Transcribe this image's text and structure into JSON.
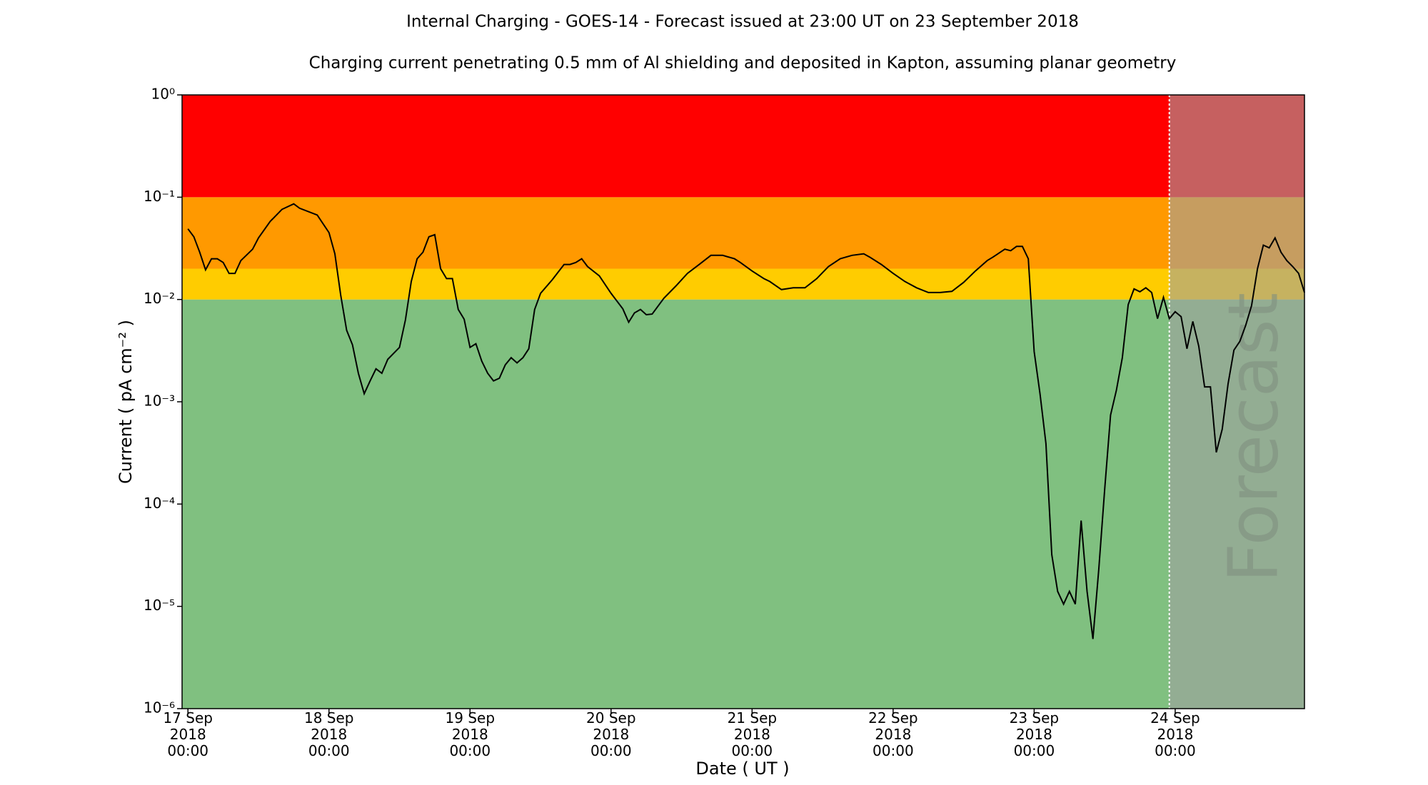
{
  "chart_data": {
    "type": "line",
    "title": "Internal Charging - GOES-14 - Forecast issued at 23:00 UT on 23 September 2018",
    "subtitle": "Charging current penetrating 0.5 mm of Al shielding and deposited in Kapton, assuming planar geometry",
    "x_label": "Date ( UT )",
    "y_label": "Current ( pA cm⁻² )",
    "log_y": true,
    "ylim": [
      1e-06,
      1
    ],
    "yticks": [
      {
        "value": 1e-06,
        "label": "10⁻⁶"
      },
      {
        "value": 1e-05,
        "label": "10⁻⁵"
      },
      {
        "value": 0.0001,
        "label": "10⁻⁴"
      },
      {
        "value": 0.001,
        "label": "10⁻³"
      },
      {
        "value": 0.01,
        "label": "10⁻²"
      },
      {
        "value": 0.1,
        "label": "10⁻¹"
      },
      {
        "value": 1,
        "label": "10⁰"
      }
    ],
    "xlim": [
      "2018-09-16 23:00",
      "2018-09-24 22:00"
    ],
    "xticks": [
      {
        "value": "2018-09-17 00:00",
        "label": "17 Sep\n2018\n00:00"
      },
      {
        "value": "2018-09-18 00:00",
        "label": "18 Sep\n2018\n00:00"
      },
      {
        "value": "2018-09-19 00:00",
        "label": "19 Sep\n2018\n00:00"
      },
      {
        "value": "2018-09-20 00:00",
        "label": "20 Sep\n2018\n00:00"
      },
      {
        "value": "2018-09-21 00:00",
        "label": "21 Sep\n2018\n00:00"
      },
      {
        "value": "2018-09-22 00:00",
        "label": "22 Sep\n2018\n00:00"
      },
      {
        "value": "2018-09-23 00:00",
        "label": "23 Sep\n2018\n00:00"
      },
      {
        "value": "2018-09-24 00:00",
        "label": "24 Sep\n2018\n00:00"
      }
    ],
    "bands": [
      {
        "from": 1e-06,
        "to": 0.01,
        "color": "#80c080"
      },
      {
        "from": 0.01,
        "to": 0.02,
        "color": "#ffcc00"
      },
      {
        "from": 0.02,
        "to": 0.1,
        "color": "#ff9900"
      },
      {
        "from": 0.1,
        "to": 1,
        "color": "#ff0000"
      }
    ],
    "forecast_start": "2018-09-23 23:00",
    "forecast_label": "Forecast",
    "forecast_color": "#a0a0a0",
    "x": [
      "2018-09-17 00:00",
      "2018-09-17 01:00",
      "2018-09-17 02:00",
      "2018-09-17 03:00",
      "2018-09-17 04:00",
      "2018-09-17 05:00",
      "2018-09-17 06:00",
      "2018-09-17 07:00",
      "2018-09-17 08:00",
      "2018-09-17 09:00",
      "2018-09-17 11:00",
      "2018-09-17 12:00",
      "2018-09-17 14:00",
      "2018-09-17 16:00",
      "2018-09-17 18:00",
      "2018-09-17 19:00",
      "2018-09-17 22:00",
      "2018-09-18 00:00",
      "2018-09-18 01:00",
      "2018-09-18 02:00",
      "2018-09-18 03:00",
      "2018-09-18 04:00",
      "2018-09-18 05:00",
      "2018-09-18 06:00",
      "2018-09-18 07:00",
      "2018-09-18 08:00",
      "2018-09-18 09:00",
      "2018-09-18 10:00",
      "2018-09-18 12:00",
      "2018-09-18 13:00",
      "2018-09-18 14:00",
      "2018-09-18 15:00",
      "2018-09-18 16:00",
      "2018-09-18 17:00",
      "2018-09-18 18:00",
      "2018-09-18 19:00",
      "2018-09-18 20:00",
      "2018-09-18 21:00",
      "2018-09-18 22:00",
      "2018-09-18 23:00",
      "2018-09-19 00:00",
      "2018-09-19 01:00",
      "2018-09-19 02:00",
      "2018-09-19 03:00",
      "2018-09-19 04:00",
      "2018-09-19 05:00",
      "2018-09-19 06:00",
      "2018-09-19 07:00",
      "2018-09-19 08:00",
      "2018-09-19 09:00",
      "2018-09-19 10:00",
      "2018-09-19 11:00",
      "2018-09-19 12:00",
      "2018-09-19 14:00",
      "2018-09-19 16:00",
      "2018-09-19 17:00",
      "2018-09-19 18:00",
      "2018-09-19 19:00",
      "2018-09-19 20:00",
      "2018-09-19 22:00",
      "2018-09-20 00:00",
      "2018-09-20 02:00",
      "2018-09-20 03:00",
      "2018-09-20 04:00",
      "2018-09-20 05:00",
      "2018-09-20 06:00",
      "2018-09-20 07:00",
      "2018-09-20 09:00",
      "2018-09-20 11:00",
      "2018-09-20 13:00",
      "2018-09-20 15:00",
      "2018-09-20 17:00",
      "2018-09-20 19:00",
      "2018-09-20 21:00",
      "2018-09-20 22:00",
      "2018-09-21 00:00",
      "2018-09-21 02:00",
      "2018-09-21 03:00",
      "2018-09-21 05:00",
      "2018-09-21 07:00",
      "2018-09-21 09:00",
      "2018-09-21 11:00",
      "2018-09-21 13:00",
      "2018-09-21 15:00",
      "2018-09-21 17:00",
      "2018-09-21 19:00",
      "2018-09-21 20:00",
      "2018-09-21 22:00",
      "2018-09-22 00:00",
      "2018-09-22 02:00",
      "2018-09-22 04:00",
      "2018-09-22 06:00",
      "2018-09-22 08:00",
      "2018-09-22 10:00",
      "2018-09-22 12:00",
      "2018-09-22 14:00",
      "2018-09-22 16:00",
      "2018-09-22 17:00",
      "2018-09-22 19:00",
      "2018-09-22 20:00",
      "2018-09-22 21:00",
      "2018-09-22 22:00",
      "2018-09-22 23:00",
      "2018-09-23 00:00",
      "2018-09-23 01:00",
      "2018-09-23 02:00",
      "2018-09-23 03:00",
      "2018-09-23 04:00",
      "2018-09-23 05:00",
      "2018-09-23 06:00",
      "2018-09-23 07:00",
      "2018-09-23 08:00",
      "2018-09-23 09:00",
      "2018-09-23 10:00",
      "2018-09-23 11:00",
      "2018-09-23 12:00",
      "2018-09-23 13:00",
      "2018-09-23 14:00",
      "2018-09-23 15:00",
      "2018-09-23 16:00",
      "2018-09-23 17:00",
      "2018-09-23 18:00",
      "2018-09-23 19:00",
      "2018-09-23 20:00",
      "2018-09-23 21:00",
      "2018-09-23 22:00",
      "2018-09-23 23:00",
      "2018-09-24 00:00",
      "2018-09-24 01:00",
      "2018-09-24 02:00",
      "2018-09-24 03:00",
      "2018-09-24 04:00",
      "2018-09-24 05:00",
      "2018-09-24 06:00",
      "2018-09-24 07:00",
      "2018-09-24 08:00",
      "2018-09-24 09:00",
      "2018-09-24 10:00",
      "2018-09-24 11:00",
      "2018-09-24 12:00",
      "2018-09-24 13:00",
      "2018-09-24 14:00",
      "2018-09-24 15:00",
      "2018-09-24 16:00",
      "2018-09-24 17:00",
      "2018-09-24 18:00",
      "2018-09-24 19:00",
      "2018-09-24 20:00",
      "2018-09-24 21:00",
      "2018-09-24 22:00"
    ],
    "series": [
      {
        "name": "Current",
        "color": "#000000",
        "values": [
          0.049,
          0.041,
          0.029,
          0.0195,
          0.025,
          0.025,
          0.023,
          0.018,
          0.018,
          0.024,
          0.031,
          0.04,
          0.058,
          0.076,
          0.086,
          0.078,
          0.067,
          0.045,
          0.028,
          0.011,
          0.005,
          0.0036,
          0.0019,
          0.0012,
          0.0016,
          0.0021,
          0.0019,
          0.0026,
          0.0034,
          0.0063,
          0.015,
          0.025,
          0.029,
          0.041,
          0.043,
          0.02,
          0.016,
          0.016,
          0.008,
          0.0064,
          0.0034,
          0.0037,
          0.0025,
          0.0019,
          0.0016,
          0.0017,
          0.0023,
          0.0027,
          0.0024,
          0.0027,
          0.0033,
          0.008,
          0.0115,
          0.0156,
          0.022,
          0.022,
          0.023,
          0.025,
          0.021,
          0.017,
          0.0115,
          0.0081,
          0.006,
          0.0074,
          0.008,
          0.0071,
          0.0072,
          0.0103,
          0.0135,
          0.018,
          0.022,
          0.027,
          0.027,
          0.025,
          0.023,
          0.019,
          0.016,
          0.015,
          0.0125,
          0.013,
          0.013,
          0.016,
          0.021,
          0.025,
          0.027,
          0.028,
          0.026,
          0.022,
          0.018,
          0.015,
          0.013,
          0.0117,
          0.0117,
          0.012,
          0.0147,
          0.019,
          0.024,
          0.026,
          0.031,
          0.03,
          0.033,
          0.033,
          0.025,
          0.0031,
          0.0012,
          0.00039,
          3.2e-05,
          1.4e-05,
          1.05e-05,
          1.4e-05,
          1.05e-05,
          6.9e-05,
          1.4e-05,
          4.8e-06,
          2.3e-05,
          0.00014,
          0.00074,
          0.0013,
          0.0027,
          0.0089,
          0.0127,
          0.0119,
          0.013,
          0.0117,
          0.0065,
          0.0105,
          0.0065,
          0.0076,
          0.0068,
          0.0033,
          0.0061,
          0.0035,
          0.0014,
          0.0014,
          0.00032,
          0.00054,
          0.0015,
          0.0032,
          0.0039,
          0.0056,
          0.0087,
          0.02,
          0.034,
          0.032,
          0.04,
          0.029,
          0.024,
          0.021,
          0.018,
          0.0117
        ]
      }
    ]
  }
}
